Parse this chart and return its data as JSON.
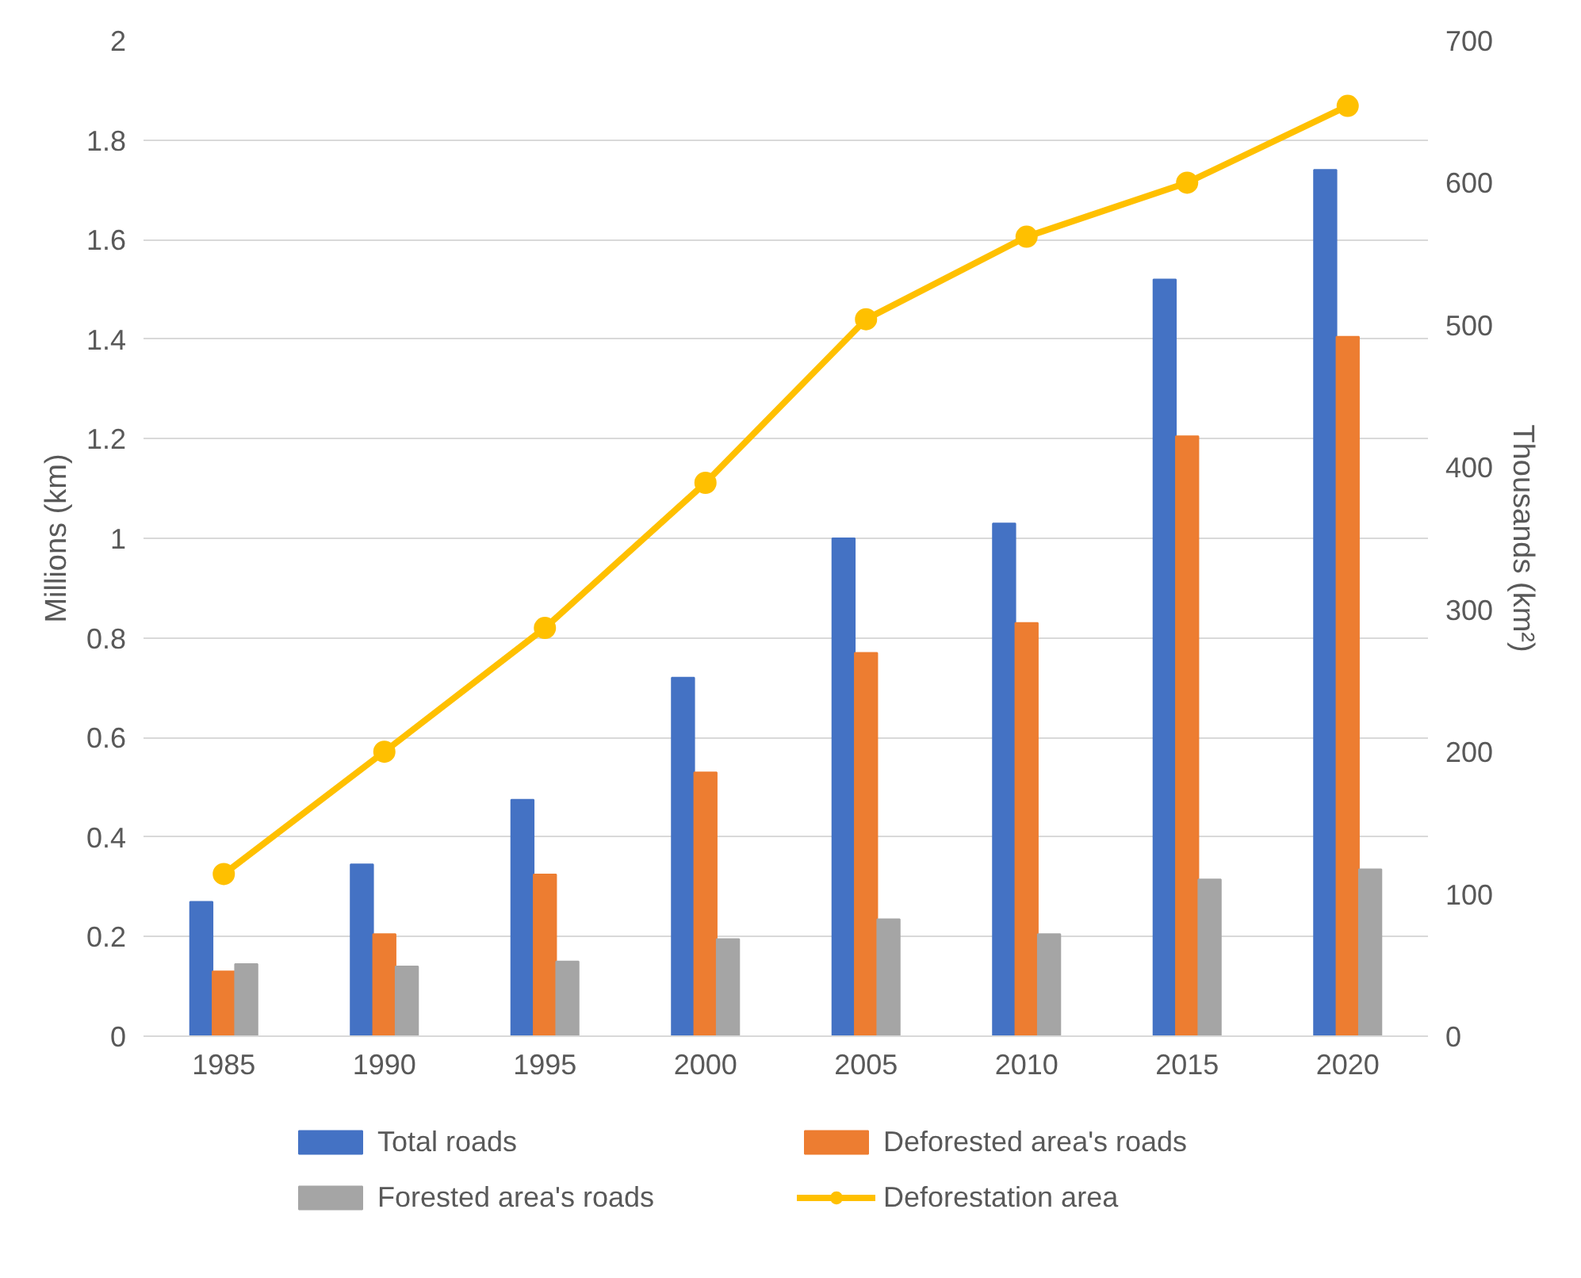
{
  "chart_data": {
    "type": "bar",
    "ylabel": "Millions (km)",
    "y2label": "Thousands (km²)",
    "categories": [
      "1985",
      "1990",
      "1995",
      "2000",
      "2005",
      "2010",
      "2015",
      "2020"
    ],
    "series": [
      {
        "name": "Total roads",
        "color": "#4472c4",
        "values": [
          0.27,
          0.345,
          0.475,
          0.72,
          1.0,
          1.03,
          1.52,
          1.74
        ]
      },
      {
        "name": "Deforested area's roads",
        "color": "#ed7d31",
        "values": [
          0.13,
          0.205,
          0.325,
          0.53,
          0.77,
          0.83,
          1.205,
          1.405
        ]
      },
      {
        "name": "Forested area's roads",
        "color": "#a5a5a5",
        "values": [
          0.145,
          0.14,
          0.15,
          0.195,
          0.235,
          0.205,
          0.315,
          0.335
        ]
      },
      {
        "name": "Deforestation area",
        "color": "#ffc000",
        "type": "line",
        "axis": "y2",
        "marker": "circle",
        "values": [
          114,
          200,
          287,
          389,
          504,
          562,
          600,
          654
        ]
      }
    ],
    "ylim": [
      0,
      2
    ],
    "yticks": [
      0,
      0.2,
      0.4,
      0.6,
      0.8,
      1,
      1.2,
      1.4,
      1.6,
      1.8,
      2
    ],
    "y2lim": [
      0,
      700
    ],
    "y2ticks": [
      0,
      100,
      200,
      300,
      400,
      500,
      600,
      700
    ],
    "grid": "y",
    "legend": "bottom"
  }
}
